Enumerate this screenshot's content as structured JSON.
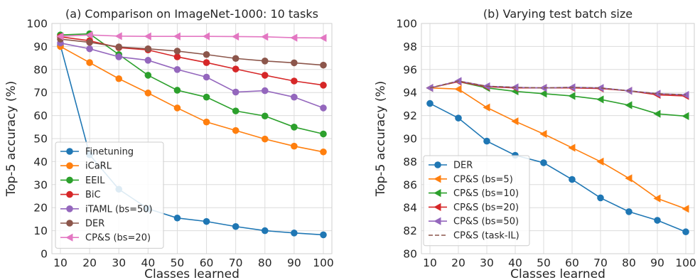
{
  "chart_data": [
    {
      "type": "line",
      "title": "(a) Comparison on ImageNet-1000: 10 tasks",
      "xlabel": "Classes learned",
      "ylabel": "Top-5 accuracy (%)",
      "x": [
        10,
        20,
        30,
        40,
        50,
        60,
        70,
        80,
        90,
        100
      ],
      "xticks": [
        "10",
        "20",
        "30",
        "40",
        "50",
        "60",
        "70",
        "80",
        "90",
        "100"
      ],
      "ylim": [
        0,
        100
      ],
      "yticks": [
        "0",
        "10",
        "20",
        "30",
        "40",
        "50",
        "60",
        "70",
        "80",
        "90",
        "100"
      ],
      "grid": true,
      "legend_position": "lower-left",
      "series": [
        {
          "name": "Finetuning",
          "color": "#1f77b4",
          "marker": "circle",
          "values": [
            90.5,
            43,
            28,
            19.5,
            15.5,
            14,
            11.8,
            10,
            9,
            8.2
          ]
        },
        {
          "name": "iCaRL",
          "color": "#ff7f0e",
          "marker": "circle",
          "values": [
            90,
            83,
            76,
            69.8,
            63.3,
            57.2,
            53.5,
            49.8,
            46.7,
            44.2
          ]
        },
        {
          "name": "EEIL",
          "color": "#2ca02c",
          "marker": "circle",
          "values": [
            95,
            95.5,
            86.5,
            77.5,
            71,
            68,
            62,
            59.8,
            55,
            52
          ]
        },
        {
          "name": "BiC",
          "color": "#d62728",
          "marker": "circle",
          "values": [
            94.2,
            92.5,
            89.5,
            88.5,
            85.5,
            83,
            80.2,
            77.5,
            75,
            73.2
          ]
        },
        {
          "name": "iTAML (bs=50)",
          "color": "#9467bd",
          "marker": "circle",
          "values": [
            91.5,
            89,
            85.5,
            84,
            80,
            76.7,
            70.2,
            70.8,
            68,
            63.3
          ]
        },
        {
          "name": "DER",
          "color": "#8c564b",
          "marker": "circle",
          "values": [
            93.2,
            91.8,
            89.8,
            89,
            88,
            86.5,
            84.8,
            83.7,
            82.9,
            81.9
          ]
        },
        {
          "name": "CP&S (bs=20)",
          "color": "#e377c2",
          "marker": "triangle-left",
          "values": [
            94.4,
            95,
            94.5,
            94.4,
            94.4,
            94.4,
            94.3,
            94.2,
            93.8,
            93.7
          ]
        }
      ]
    },
    {
      "type": "line",
      "title": "(b) Varying test batch size",
      "xlabel": "Classes learned",
      "ylabel": "Top-5 accuracy (%)",
      "x": [
        10,
        20,
        30,
        40,
        50,
        60,
        70,
        80,
        90,
        100
      ],
      "xticks": [
        "10",
        "20",
        "30",
        "40",
        "50",
        "60",
        "70",
        "80",
        "90",
        "100"
      ],
      "ylim": [
        80,
        100
      ],
      "yticks": [
        "80",
        "82",
        "84",
        "86",
        "88",
        "90",
        "92",
        "94",
        "96",
        "98",
        "100"
      ],
      "grid": true,
      "legend_position": "lower-left",
      "series": [
        {
          "name": "DER",
          "color": "#1f77b4",
          "marker": "circle",
          "values": [
            93.05,
            91.78,
            89.78,
            88.55,
            87.9,
            86.45,
            84.85,
            83.65,
            82.9,
            81.9
          ]
        },
        {
          "name": "CP&S (bs=5)",
          "color": "#ff7f0e",
          "marker": "triangle-left",
          "values": [
            94.4,
            94.3,
            92.7,
            91.5,
            90.4,
            89.2,
            88.0,
            86.55,
            84.8,
            83.9
          ]
        },
        {
          "name": "CP&S (bs=10)",
          "color": "#2ca02c",
          "marker": "triangle-left",
          "values": [
            94.4,
            94.95,
            94.4,
            94.1,
            93.9,
            93.7,
            93.4,
            92.9,
            92.15,
            91.95
          ]
        },
        {
          "name": "CP&S (bs=20)",
          "color": "#d62728",
          "marker": "triangle-left",
          "values": [
            94.4,
            94.95,
            94.5,
            94.4,
            94.4,
            94.4,
            94.35,
            94.15,
            93.8,
            93.7
          ]
        },
        {
          "name": "CP&S (bs=50)",
          "color": "#9467bd",
          "marker": "triangle-left",
          "values": [
            94.4,
            95.0,
            94.55,
            94.45,
            94.4,
            94.45,
            94.4,
            94.15,
            93.9,
            93.8
          ]
        },
        {
          "name": "CP&S (task-IL)",
          "color": "#8c564b",
          "marker": "none",
          "dashed": true,
          "values": [
            94.4,
            95.0,
            94.55,
            94.45,
            94.4,
            94.45,
            94.4,
            94.15,
            93.9,
            93.8
          ]
        }
      ]
    }
  ]
}
